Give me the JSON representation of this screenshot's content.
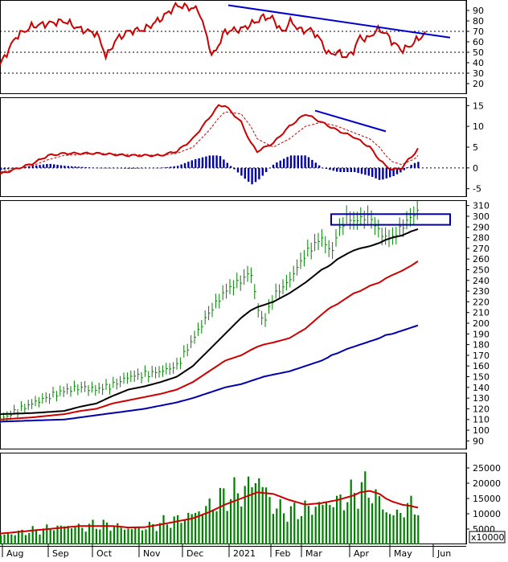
{
  "colors": {
    "price_bar": "#008000",
    "rsi": "#cc0000",
    "macd": "#cc0000",
    "signal": "#cc0000",
    "histogram": "#0000aa",
    "ma_black": "#000000",
    "ma_red": "#cc0000",
    "ma_blue": "#0000aa",
    "trendline": "#0000cc",
    "volume_bar": "#008000",
    "volume_ma": "#cc0000",
    "box": "#0000aa"
  },
  "x_axis": {
    "labels": [
      "Aug",
      "Sep",
      "Oct",
      "Nov",
      "Dec",
      "2021",
      "Feb",
      "Mar",
      "Apr",
      "May",
      "Jun"
    ]
  },
  "chart_data": [
    {
      "type": "line",
      "panel": "rsi",
      "ylim": [
        10,
        100
      ],
      "yticks": [
        20,
        30,
        40,
        50,
        60,
        70,
        80,
        90
      ],
      "reference_lines": [
        30,
        50,
        70
      ],
      "x": [
        0,
        5,
        10,
        20,
        25,
        30,
        32,
        33,
        36,
        40,
        45,
        50,
        55,
        60,
        62,
        63,
        65,
        66,
        70,
        75,
        80,
        82,
        85,
        88,
        90,
        92,
        94,
        96,
        98,
        100,
        102,
        105,
        108,
        110,
        112,
        114,
        116,
        118,
        120,
        122,
        125,
        127,
        129,
        131,
        133
      ],
      "series": [
        {
          "values": [
            38,
            65,
            75,
            80,
            72,
            68,
            55,
            45,
            62,
            70,
            72,
            82,
            95,
            92,
            90,
            78,
            58,
            45,
            70,
            72,
            80,
            84,
            82,
            68,
            80,
            75,
            70,
            72,
            68,
            60,
            48,
            50,
            45,
            52,
            65,
            62,
            68,
            72,
            68,
            60,
            52,
            55,
            60,
            65,
            70
          ]
        }
      ],
      "trendline": {
        "x": [
          71,
          140
        ],
        "y": [
          95,
          64
        ]
      }
    },
    {
      "type": "line",
      "panel": "macd",
      "ylim": [
        -7,
        17
      ],
      "yticks": [
        -5,
        0,
        5,
        10,
        15
      ],
      "reference_lines": [
        0
      ],
      "x": [
        0,
        10,
        15,
        20,
        30,
        40,
        50,
        55,
        60,
        65,
        68,
        70,
        75,
        78,
        80,
        85,
        90,
        95,
        100,
        105,
        110,
        115,
        118,
        120,
        122,
        125,
        127,
        129,
        130
      ],
      "series": [
        {
          "values": [
            -1.5,
            1,
            3,
            3.5,
            3.5,
            3,
            3,
            4,
            7,
            12,
            15,
            15,
            11,
            6,
            4,
            6,
            10,
            13,
            11,
            9,
            7.5,
            5,
            2,
            0.5,
            -0.5,
            0,
            2,
            3.5,
            4.5
          ]
        },
        {
          "values": [
            -1,
            0.5,
            2,
            3,
            3.5,
            3.2,
            3,
            3.5,
            5,
            9,
            12,
            13.5,
            13,
            10,
            7,
            5,
            7,
            10,
            11,
            10,
            8.5,
            7,
            5,
            3,
            1.5,
            0.8,
            1.5,
            2.2,
            3
          ]
        }
      ],
      "histogram": [
        -0.5,
        0.5,
        1,
        0.5,
        0,
        -0.2,
        0,
        0.5,
        2,
        3,
        3,
        1.5,
        -2,
        -4,
        -3,
        1,
        3,
        3,
        0,
        -1,
        -1,
        -2,
        -3,
        -2.5,
        -2,
        -0.8,
        0.5,
        1.3,
        1.5
      ],
      "trendline": {
        "x": [
          98,
          120
        ],
        "y": [
          13.8,
          8.8
        ]
      }
    },
    {
      "type": "bar",
      "panel": "price",
      "ylim": [
        82,
        315
      ],
      "yticks": [
        90,
        100,
        110,
        120,
        130,
        140,
        150,
        160,
        170,
        180,
        190,
        200,
        210,
        220,
        230,
        240,
        250,
        260,
        270,
        280,
        290,
        300,
        310
      ],
      "x": [
        0,
        10,
        20,
        25,
        30,
        35,
        40,
        45,
        50,
        55,
        60,
        65,
        70,
        75,
        78,
        80,
        82,
        85,
        90,
        95,
        100,
        102,
        103,
        105,
        108,
        110,
        112,
        115,
        118,
        120,
        122,
        125,
        128,
        130
      ],
      "series": [
        {
          "name": "close",
          "values": [
            110,
            125,
            137,
            140,
            138,
            142,
            150,
            152,
            155,
            160,
            185,
            210,
            230,
            240,
            248,
            215,
            200,
            225,
            240,
            265,
            280,
            270,
            265,
            285,
            300,
            295,
            298,
            300,
            285,
            280,
            280,
            290,
            300,
            305
          ]
        },
        {
          "name": "ma_black",
          "values": [
            115,
            116,
            118,
            122,
            125,
            132,
            138,
            141,
            145,
            150,
            160,
            175,
            190,
            205,
            212,
            215,
            217,
            220,
            228,
            238,
            250,
            253,
            255,
            260,
            265,
            268,
            270,
            272,
            275,
            278,
            280,
            282,
            286,
            288
          ]
        },
        {
          "name": "ma_red",
          "values": [
            110,
            112,
            115,
            118,
            120,
            125,
            128,
            131,
            134,
            138,
            145,
            155,
            165,
            170,
            175,
            178,
            180,
            182,
            186,
            195,
            208,
            213,
            215,
            218,
            224,
            228,
            230,
            235,
            238,
            242,
            245,
            249,
            254,
            258
          ]
        },
        {
          "name": "ma_blue",
          "values": [
            108,
            109,
            110,
            112,
            114,
            116,
            118,
            120,
            123,
            126,
            130,
            135,
            140,
            143,
            146,
            148,
            150,
            152,
            155,
            160,
            165,
            168,
            170,
            172,
            176,
            178,
            180,
            183,
            186,
            189,
            190,
            193,
            196,
            198
          ]
        }
      ],
      "resistance_box": {
        "x": [
          103,
          140
        ],
        "y": [
          292,
          302
        ]
      }
    },
    {
      "type": "bar",
      "panel": "volume",
      "units": "x10000",
      "ylim": [
        0,
        30000
      ],
      "yticks": [
        5000,
        10000,
        15000,
        20000,
        25000
      ],
      "x": [
        0,
        10,
        20,
        25,
        30,
        35,
        40,
        45,
        50,
        55,
        60,
        65,
        70,
        75,
        80,
        85,
        90,
        95,
        100,
        105,
        110,
        112,
        115,
        118,
        120,
        122,
        125,
        128,
        130
      ],
      "series": [
        {
          "name": "volume",
          "values": [
            3000,
            4500,
            6000,
            5500,
            6500,
            6000,
            5000,
            5500,
            7000,
            8000,
            10000,
            12500,
            16000,
            17000,
            22000,
            12000,
            10500,
            11500,
            13000,
            14000,
            16500,
            19000,
            17500,
            14000,
            10500,
            9500,
            11000,
            13000,
            12000
          ]
        },
        {
          "name": "volume_ma",
          "values": [
            3500,
            4500,
            5500,
            6000,
            6000,
            6000,
            5500,
            5600,
            6500,
            7500,
            8500,
            10500,
            13000,
            15000,
            17000,
            16500,
            14500,
            13000,
            13500,
            14500,
            16000,
            17000,
            17500,
            16500,
            15000,
            14000,
            13000,
            12500,
            12000
          ]
        }
      ]
    }
  ]
}
